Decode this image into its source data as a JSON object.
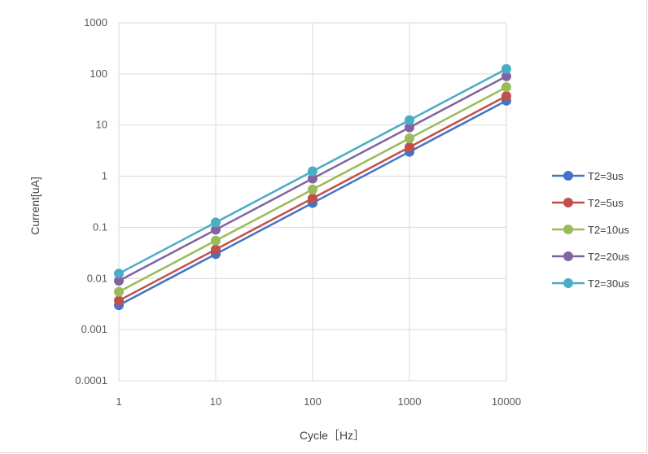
{
  "chart_data": {
    "type": "line",
    "xlabel": "Cycle［Hz］",
    "ylabel": "Current[uA]",
    "x_scale": "log",
    "y_scale": "log",
    "x": [
      1,
      10,
      100,
      1000,
      10000
    ],
    "x_tick_labels": [
      "1",
      "10",
      "100",
      "1000",
      "10000"
    ],
    "y_tick_labels": [
      "0.0001",
      "0.001",
      "0.01",
      "0.1",
      "1",
      "10",
      "100",
      "1000"
    ],
    "ylim": [
      0.0001,
      1000
    ],
    "grid": true,
    "legend_position": "right",
    "series": [
      {
        "name": "T2=3us",
        "color": "#4472c4",
        "values": [
          0.003,
          0.03,
          0.3,
          3,
          30
        ]
      },
      {
        "name": "T2=5us",
        "color": "#c0504d",
        "values": [
          0.0037,
          0.037,
          0.37,
          3.7,
          37
        ]
      },
      {
        "name": "T2=10us",
        "color": "#9bbb59",
        "values": [
          0.0055,
          0.055,
          0.55,
          5.5,
          55
        ]
      },
      {
        "name": "T2=20us",
        "color": "#8064a2",
        "values": [
          0.009,
          0.09,
          0.9,
          9,
          90
        ]
      },
      {
        "name": "T2=30us",
        "color": "#4bacc6",
        "values": [
          0.0125,
          0.125,
          1.25,
          12.5,
          125
        ]
      }
    ]
  }
}
